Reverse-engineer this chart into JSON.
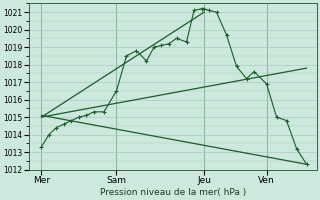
{
  "background_color": "#cde8dc",
  "grid_color": "#a8ccbe",
  "line_color": "#1a5c2a",
  "ylim": [
    1012,
    1021.5
  ],
  "yticks": [
    1012,
    1013,
    1014,
    1015,
    1016,
    1017,
    1018,
    1019,
    1020,
    1021
  ],
  "xlabel": "Pression niveau de la mer( hPa )",
  "day_labels": [
    "Mer",
    "Sam",
    "Jeu",
    "Ven"
  ],
  "day_positions": [
    0.5,
    3.5,
    7.0,
    9.5
  ],
  "vline_positions": [
    0.5,
    3.5,
    7.0,
    9.5
  ],
  "xlim": [
    0,
    11.5
  ],
  "series1": {
    "x": [
      0.5,
      0.8,
      1.1,
      1.4,
      1.7,
      2.0,
      2.3,
      2.6,
      3.0,
      3.5,
      3.9,
      4.3,
      4.7,
      5.0,
      5.3,
      5.6,
      5.9,
      6.3,
      6.6,
      6.9,
      7.0,
      7.2,
      7.5,
      7.9,
      8.3,
      8.7,
      9.0,
      9.5,
      9.9,
      10.3,
      10.7,
      11.1
    ],
    "y": [
      1013.3,
      1014.0,
      1014.4,
      1014.6,
      1014.8,
      1015.0,
      1015.1,
      1015.3,
      1015.3,
      1016.5,
      1018.5,
      1018.8,
      1018.2,
      1019.0,
      1019.1,
      1019.2,
      1019.5,
      1019.3,
      1021.1,
      1021.2,
      1021.2,
      1021.1,
      1021.0,
      1019.7,
      1017.9,
      1017.2,
      1017.6,
      1016.9,
      1015.0,
      1014.8,
      1013.2,
      1012.3
    ]
  },
  "series2_straight": {
    "x": [
      0.5,
      7.0
    ],
    "y": [
      1015.0,
      1021.0
    ]
  },
  "series3_straight": {
    "x": [
      0.5,
      11.1
    ],
    "y": [
      1015.1,
      1012.3
    ]
  },
  "series4_straight": {
    "x": [
      0.5,
      11.1
    ],
    "y": [
      1015.0,
      1017.8
    ]
  }
}
